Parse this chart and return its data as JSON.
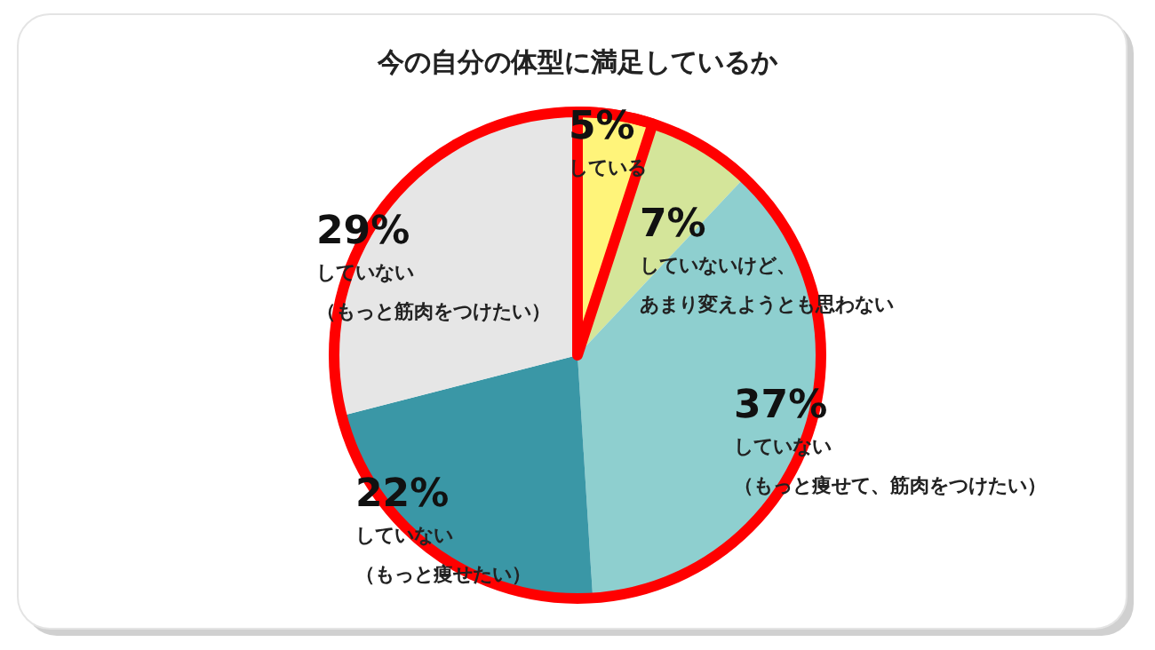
{
  "chart_data": {
    "type": "pie",
    "title": "今の自分の体型に満足しているか",
    "categories": [
      "している",
      "していないけど、あまり変えようとも思わない",
      "していない（もっと痩せて、筋肉をつけたい）",
      "していない（もっと痩せたい）",
      "していない（もっと筋肉をつけたい）"
    ],
    "values": [
      5,
      7,
      37,
      22,
      29
    ],
    "value_labels": [
      "5%",
      "7%",
      "37%",
      "22%",
      "29%"
    ],
    "colors": [
      "#fff47a",
      "#d4e59a",
      "#8ecfcf",
      "#3a97a6",
      "#e6e6e6"
    ]
  }
}
